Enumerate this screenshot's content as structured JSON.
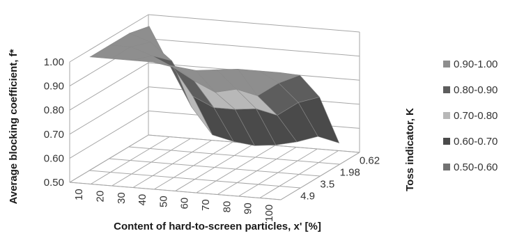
{
  "chart_data": {
    "type": "surface-3d",
    "xlabel": "Content of hard-to-screen particles, x' [%]",
    "ylabel": "Average blocking coefficient, f*",
    "zlabel": "Toss indicator, K",
    "x_categories": [
      "10",
      "20",
      "30",
      "40",
      "50",
      "60",
      "70",
      "80",
      "90",
      "100"
    ],
    "depth_categories": [
      "0.62",
      "1.98",
      "3.5",
      "4.9"
    ],
    "y_ticks": [
      "0.50",
      "0.60",
      "0.70",
      "0.80",
      "0.90",
      "1.00"
    ],
    "ylim": [
      0.5,
      1.0
    ],
    "surface": [
      [
        0.98,
        0.82,
        0.66,
        0.55,
        0.53,
        0.52,
        0.53,
        0.55,
        0.58,
        0.56
      ],
      [
        1.0,
        0.97,
        0.9,
        0.76,
        0.72,
        0.72,
        0.73,
        0.71,
        0.77,
        0.8
      ],
      [
        1.0,
        1.0,
        0.97,
        0.93,
        0.88,
        0.84,
        0.86,
        0.84,
        0.9,
        0.94
      ],
      [
        1.0,
        1.0,
        1.0,
        1.0,
        0.99,
        0.98,
        0.99,
        1.0,
        1.0,
        1.0
      ]
    ],
    "legend": [
      {
        "label": "0.90-1.00",
        "color": "#8e8e8e"
      },
      {
        "label": "0.80-0.90",
        "color": "#5d5d5d"
      },
      {
        "label": "0.70-0.80",
        "color": "#b8b8b8"
      },
      {
        "label": "0.60-0.70",
        "color": "#4a4a4a"
      },
      {
        "label": "0.50-0.60",
        "color": "#727272"
      }
    ],
    "legend_position": "right",
    "grid": true
  },
  "colors": {
    "grid": "#a6a6a6",
    "axis_text": "#333333",
    "surface_edge": "#8a8a8a"
  }
}
